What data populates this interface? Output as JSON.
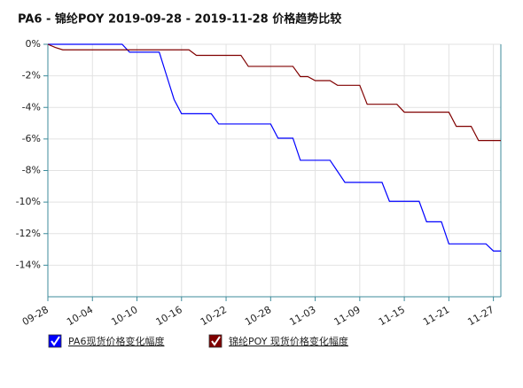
{
  "chart_data": {
    "type": "line",
    "title": "PA6 - 锦纶POY 2019-09-28 - 2019-11-28 价格趋势比较",
    "categories": [
      "09-28",
      null,
      null,
      null,
      null,
      null,
      "10-04",
      null,
      null,
      null,
      null,
      null,
      "10-10",
      null,
      null,
      null,
      null,
      null,
      "10-16",
      null,
      null,
      null,
      null,
      null,
      "10-22",
      null,
      null,
      null,
      null,
      null,
      "10-28",
      null,
      null,
      null,
      null,
      null,
      "11-03",
      null,
      null,
      null,
      null,
      null,
      "11-09",
      null,
      null,
      null,
      null,
      null,
      "11-15",
      null,
      null,
      null,
      null,
      null,
      "11-21",
      null,
      null,
      null,
      null,
      null,
      "11-27",
      null
    ],
    "ylim": [
      -16,
      0
    ],
    "yticks": [
      {
        "value": 0,
        "label": "0%"
      },
      {
        "value": -2,
        "label": "-2%"
      },
      {
        "value": -4,
        "label": "-4%"
      },
      {
        "value": -6,
        "label": "-6%"
      },
      {
        "value": -8,
        "label": "-8%"
      },
      {
        "value": -10,
        "label": "-10%"
      },
      {
        "value": -12,
        "label": "-12%"
      },
      {
        "value": -14,
        "label": "-14%"
      }
    ],
    "grid": true,
    "series": [
      {
        "name": "PA6现货价格变化幅度",
        "color": "#0000ff",
        "values": [
          0,
          0,
          0,
          0,
          0,
          0,
          0,
          0,
          0,
          0,
          0,
          -0.5,
          -0.5,
          -0.5,
          -0.5,
          -0.5,
          -2.0,
          -3.5,
          -4.4,
          -4.4,
          -4.4,
          -4.4,
          -4.4,
          -5.05,
          -5.05,
          -5.05,
          -5.05,
          -5.05,
          -5.05,
          -5.05,
          -5.05,
          -5.95,
          -5.95,
          -5.95,
          -7.35,
          -7.35,
          -7.35,
          -7.35,
          -7.35,
          -8.05,
          -8.75,
          -8.75,
          -8.75,
          -8.75,
          -8.75,
          -8.75,
          -9.95,
          -9.95,
          -9.95,
          -9.95,
          -9.95,
          -11.25,
          -11.25,
          -11.25,
          -12.65,
          -12.65,
          -12.65,
          -12.65,
          -12.65,
          -12.65,
          -13.1,
          -13.1
        ]
      },
      {
        "name": "锦纶POY 现货价格变化幅度",
        "color": "#800000",
        "values": [
          0,
          -0.2,
          -0.35,
          -0.35,
          -0.35,
          -0.35,
          -0.35,
          -0.35,
          -0.35,
          -0.35,
          -0.35,
          -0.35,
          -0.35,
          -0.35,
          -0.35,
          -0.35,
          -0.35,
          -0.35,
          -0.35,
          -0.35,
          -0.7,
          -0.7,
          -0.7,
          -0.7,
          -0.7,
          -0.7,
          -0.7,
          -1.4,
          -1.4,
          -1.4,
          -1.4,
          -1.4,
          -1.4,
          -1.4,
          -2.05,
          -2.05,
          -2.3,
          -2.3,
          -2.3,
          -2.6,
          -2.6,
          -2.6,
          -2.6,
          -3.8,
          -3.8,
          -3.8,
          -3.8,
          -3.8,
          -4.3,
          -4.3,
          -4.3,
          -4.3,
          -4.3,
          -4.3,
          -4.3,
          -5.2,
          -5.2,
          -5.2,
          -6.1,
          -6.1,
          -6.1,
          -6.1
        ]
      }
    ]
  }
}
